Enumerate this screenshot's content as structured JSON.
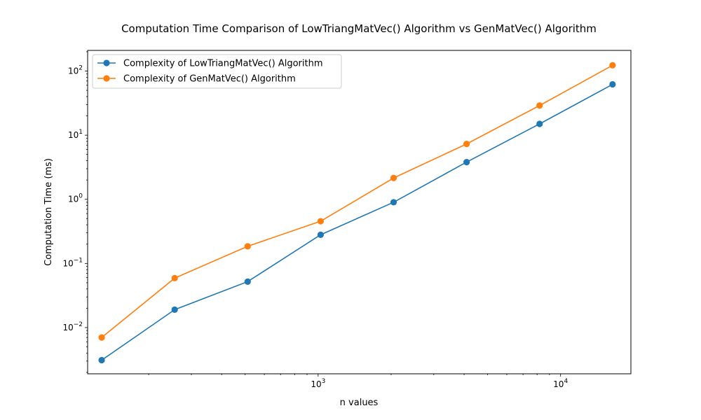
{
  "chart_data": {
    "type": "line",
    "title": "Computation Time Comparison of LowTriangMatVec() Algorithm vs GenMatVec() Algorithm",
    "xlabel": "n values",
    "ylabel": "Computation Time (ms)",
    "x_scale": "log",
    "y_scale": "log",
    "xlim": [
      112,
      19500
    ],
    "ylim": [
      0.0019,
      210
    ],
    "grid": false,
    "legend_position": "top-left",
    "x": [
      128,
      256,
      512,
      1024,
      2048,
      4096,
      8192,
      16384
    ],
    "x_ticks": [
      {
        "value": 1000,
        "base": "10",
        "exp": "3"
      },
      {
        "value": 10000,
        "base": "10",
        "exp": "4"
      }
    ],
    "y_ticks": [
      {
        "value": 0.01,
        "base": "10",
        "exp": "−2"
      },
      {
        "value": 0.1,
        "base": "10",
        "exp": "−1"
      },
      {
        "value": 1,
        "base": "10",
        "exp": "0"
      },
      {
        "value": 10,
        "base": "10",
        "exp": "1"
      },
      {
        "value": 100,
        "base": "10",
        "exp": "2"
      }
    ],
    "series": [
      {
        "name": "Complexity of LowTriangMatVec() Algorithm",
        "color": "#1f77b4",
        "values": [
          0.0031,
          0.019,
          0.052,
          0.28,
          0.9,
          3.8,
          15,
          62
        ]
      },
      {
        "name": "Complexity of GenMatVec() Algorithm",
        "color": "#ff7f0e",
        "values": [
          0.007,
          0.059,
          0.185,
          0.455,
          2.15,
          7.3,
          29,
          123
        ]
      }
    ]
  }
}
